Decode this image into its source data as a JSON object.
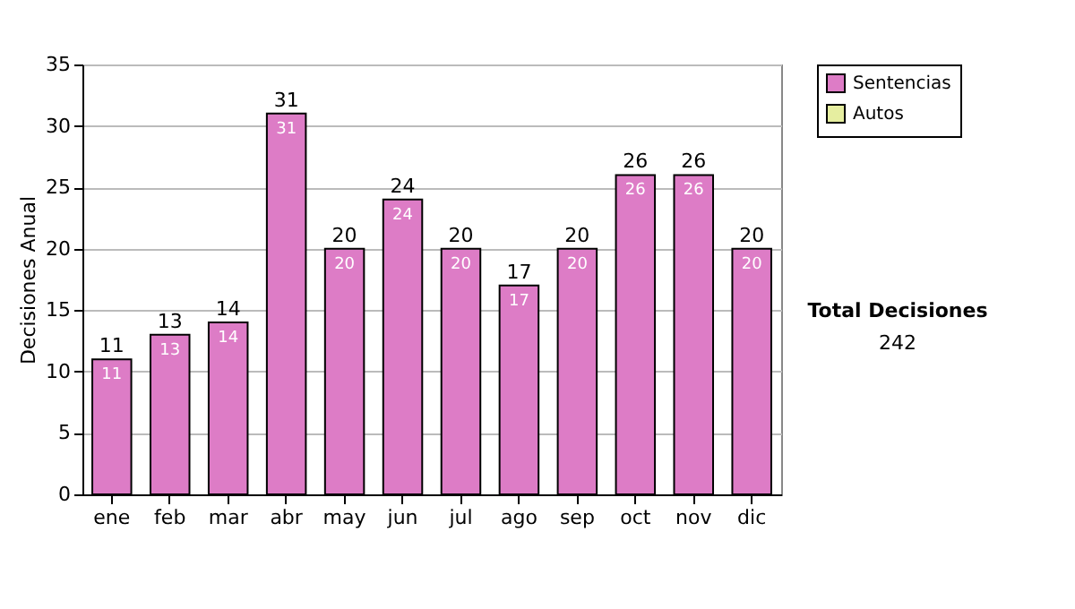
{
  "chart_data": {
    "type": "bar",
    "ylabel": "Decisiones Anual",
    "categories": [
      "ene",
      "feb",
      "mar",
      "abr",
      "may",
      "jun",
      "jul",
      "ago",
      "sep",
      "oct",
      "nov",
      "dic"
    ],
    "series": [
      {
        "name": "Sentencias",
        "color": "#dd7cc6",
        "values": [
          11,
          13,
          14,
          31,
          20,
          24,
          20,
          17,
          20,
          26,
          26,
          20
        ]
      },
      {
        "name": "Autos",
        "color": "#e6eea0",
        "values": [
          null,
          null,
          null,
          null,
          null,
          null,
          null,
          null,
          null,
          null,
          null,
          null
        ]
      }
    ],
    "data_labels": true,
    "totals": [
      "11",
      "13",
      "14",
      "31",
      "20",
      "24",
      "20",
      "17",
      "20",
      "26",
      "26",
      "20"
    ],
    "ylim": [
      0,
      35
    ],
    "yticks": [
      0,
      5,
      10,
      15,
      20,
      25,
      30,
      35
    ],
    "grid": "y",
    "legend": "right",
    "annotations": [
      "Total Decisiones",
      "242"
    ]
  }
}
